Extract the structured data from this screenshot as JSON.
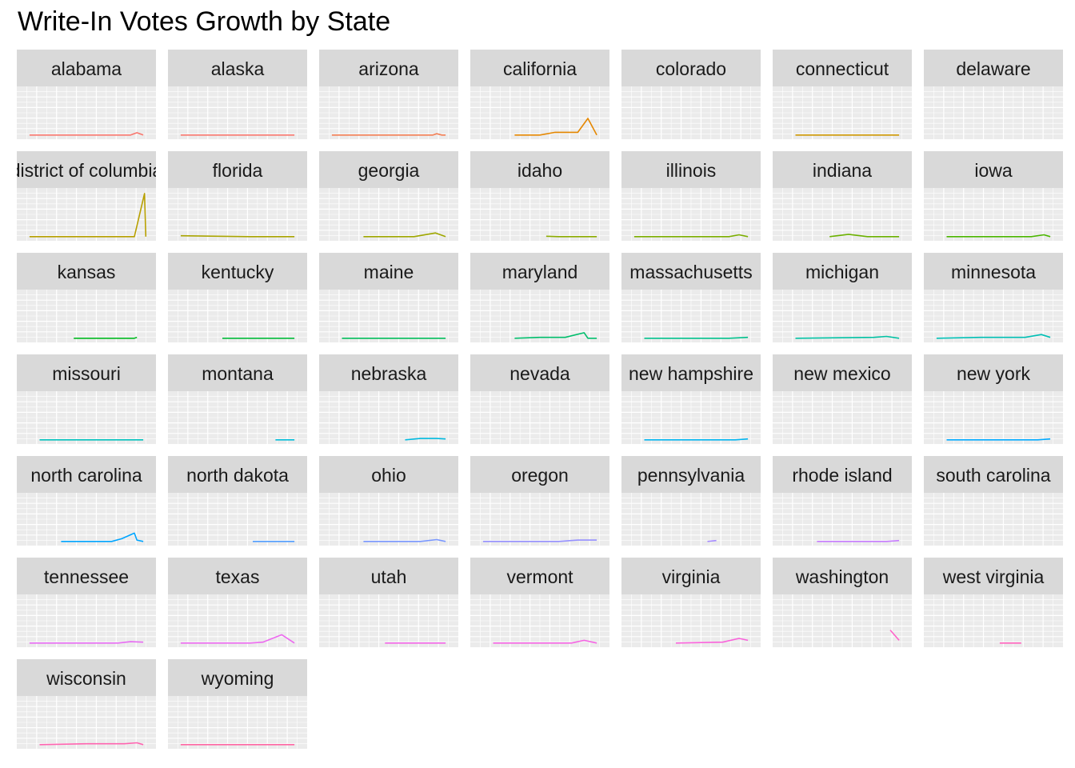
{
  "title": "Write-In Votes Growth by State",
  "colors": {
    "panel_bg": "#ebebeb",
    "strip_bg": "#d9d9d9",
    "grid": "#ffffff"
  },
  "chart_data": {
    "type": "line",
    "title": "Write-In Votes Growth by State",
    "xlabel": "",
    "ylabel": "",
    "axes_shown": false,
    "grid": true,
    "x_range": [
      0,
      1
    ],
    "y_range": [
      0,
      1
    ],
    "facets": [
      {
        "name": "alabama",
        "color": "#f8766d",
        "points": [
          [
            0.05,
            0.02
          ],
          [
            0.85,
            0.02
          ],
          [
            0.9,
            0.07
          ],
          [
            0.95,
            0.02
          ]
        ]
      },
      {
        "name": "alaska",
        "color": "#f8766d",
        "points": [
          [
            0.05,
            0.02
          ],
          [
            0.95,
            0.02
          ]
        ]
      },
      {
        "name": "arizona",
        "color": "#f27d52",
        "points": [
          [
            0.05,
            0.02
          ],
          [
            0.85,
            0.02
          ],
          [
            0.88,
            0.05
          ],
          [
            0.92,
            0.02
          ],
          [
            0.95,
            0.02
          ]
        ]
      },
      {
        "name": "california",
        "color": "#e58700",
        "points": [
          [
            0.3,
            0.02
          ],
          [
            0.5,
            0.02
          ],
          [
            0.62,
            0.08
          ],
          [
            0.8,
            0.08
          ],
          [
            0.88,
            0.38
          ],
          [
            0.95,
            0.02
          ]
        ]
      },
      {
        "name": "colorado",
        "color": "#d89000",
        "points": []
      },
      {
        "name": "connecticut",
        "color": "#cd9600",
        "points": [
          [
            0.13,
            0.02
          ],
          [
            0.95,
            0.02
          ]
        ]
      },
      {
        "name": "delaware",
        "color": "#c49a00",
        "points": []
      },
      {
        "name": "district of columbia",
        "color": "#b79f00",
        "points": [
          [
            0.05,
            0.02
          ],
          [
            0.88,
            0.02
          ],
          [
            0.96,
            0.95
          ],
          [
            0.97,
            0.02
          ]
        ]
      },
      {
        "name": "florida",
        "color": "#a9a400",
        "points": [
          [
            0.05,
            0.04
          ],
          [
            0.6,
            0.02
          ],
          [
            0.95,
            0.02
          ]
        ]
      },
      {
        "name": "georgia",
        "color": "#9fa700",
        "points": [
          [
            0.3,
            0.02
          ],
          [
            0.7,
            0.02
          ],
          [
            0.87,
            0.1
          ],
          [
            0.95,
            0.02
          ]
        ]
      },
      {
        "name": "idaho",
        "color": "#8cab00",
        "points": [
          [
            0.55,
            0.03
          ],
          [
            0.65,
            0.02
          ],
          [
            0.95,
            0.02
          ]
        ]
      },
      {
        "name": "illinois",
        "color": "#7cae00",
        "points": [
          [
            0.05,
            0.02
          ],
          [
            0.8,
            0.02
          ],
          [
            0.88,
            0.06
          ],
          [
            0.95,
            0.02
          ]
        ]
      },
      {
        "name": "indiana",
        "color": "#6bb100",
        "points": [
          [
            0.4,
            0.02
          ],
          [
            0.55,
            0.07
          ],
          [
            0.7,
            0.02
          ],
          [
            0.95,
            0.02
          ]
        ]
      },
      {
        "name": "iowa",
        "color": "#4bb600",
        "points": [
          [
            0.13,
            0.02
          ],
          [
            0.8,
            0.02
          ],
          [
            0.9,
            0.06
          ],
          [
            0.95,
            0.02
          ]
        ]
      },
      {
        "name": "kansas",
        "color": "#00b81f",
        "points": [
          [
            0.4,
            0.02
          ],
          [
            0.88,
            0.02
          ],
          [
            0.9,
            0.04
          ]
        ]
      },
      {
        "name": "kentucky",
        "color": "#00ba38",
        "points": [
          [
            0.38,
            0.02
          ],
          [
            0.95,
            0.02
          ]
        ]
      },
      {
        "name": "maine",
        "color": "#00bc59",
        "points": [
          [
            0.13,
            0.02
          ],
          [
            0.95,
            0.02
          ]
        ]
      },
      {
        "name": "maryland",
        "color": "#00be6c",
        "points": [
          [
            0.3,
            0.02
          ],
          [
            0.5,
            0.04
          ],
          [
            0.7,
            0.04
          ],
          [
            0.85,
            0.14
          ],
          [
            0.88,
            0.02
          ],
          [
            0.95,
            0.02
          ]
        ]
      },
      {
        "name": "massachusetts",
        "color": "#00c08b",
        "points": [
          [
            0.13,
            0.02
          ],
          [
            0.8,
            0.02
          ],
          [
            0.95,
            0.04
          ]
        ]
      },
      {
        "name": "michigan",
        "color": "#00c1a3",
        "points": [
          [
            0.13,
            0.02
          ],
          [
            0.75,
            0.04
          ],
          [
            0.85,
            0.06
          ],
          [
            0.95,
            0.02
          ]
        ]
      },
      {
        "name": "minnesota",
        "color": "#00bfb5",
        "points": [
          [
            0.05,
            0.02
          ],
          [
            0.4,
            0.04
          ],
          [
            0.75,
            0.04
          ],
          [
            0.88,
            0.1
          ],
          [
            0.95,
            0.04
          ]
        ]
      },
      {
        "name": "missouri",
        "color": "#00c0bb",
        "points": [
          [
            0.13,
            0.02
          ],
          [
            0.95,
            0.02
          ]
        ]
      },
      {
        "name": "montana",
        "color": "#00bcd8",
        "points": [
          [
            0.8,
            0.02
          ],
          [
            0.95,
            0.02
          ]
        ]
      },
      {
        "name": "nebraska",
        "color": "#00bae0",
        "points": [
          [
            0.63,
            0.02
          ],
          [
            0.75,
            0.05
          ],
          [
            0.88,
            0.05
          ],
          [
            0.95,
            0.04
          ]
        ]
      },
      {
        "name": "nevada",
        "color": "#00b7e9",
        "points": []
      },
      {
        "name": "new hampshire",
        "color": "#00b4ef",
        "points": [
          [
            0.13,
            0.02
          ],
          [
            0.85,
            0.02
          ],
          [
            0.95,
            0.04
          ]
        ]
      },
      {
        "name": "new mexico",
        "color": "#00aef8",
        "points": []
      },
      {
        "name": "new york",
        "color": "#00a9ff",
        "points": [
          [
            0.13,
            0.02
          ],
          [
            0.85,
            0.02
          ],
          [
            0.95,
            0.04
          ]
        ]
      },
      {
        "name": "north carolina",
        "color": "#00a5ff",
        "points": [
          [
            0.3,
            0.02
          ],
          [
            0.7,
            0.02
          ],
          [
            0.78,
            0.08
          ],
          [
            0.88,
            0.2
          ],
          [
            0.9,
            0.05
          ],
          [
            0.95,
            0.02
          ]
        ]
      },
      {
        "name": "north dakota",
        "color": "#529eff",
        "points": [
          [
            0.62,
            0.02
          ],
          [
            0.95,
            0.02
          ]
        ]
      },
      {
        "name": "ohio",
        "color": "#7997ff",
        "points": [
          [
            0.3,
            0.02
          ],
          [
            0.75,
            0.02
          ],
          [
            0.88,
            0.06
          ],
          [
            0.95,
            0.02
          ]
        ]
      },
      {
        "name": "oregon",
        "color": "#9590ff",
        "points": [
          [
            0.05,
            0.02
          ],
          [
            0.65,
            0.02
          ],
          [
            0.8,
            0.05
          ],
          [
            0.95,
            0.05
          ]
        ]
      },
      {
        "name": "pennsylvania",
        "color": "#a58aff",
        "points": [
          [
            0.63,
            0.02
          ],
          [
            0.7,
            0.04
          ]
        ]
      },
      {
        "name": "rhode island",
        "color": "#c77cff",
        "points": [
          [
            0.3,
            0.02
          ],
          [
            0.85,
            0.02
          ],
          [
            0.95,
            0.04
          ]
        ]
      },
      {
        "name": "south carolina",
        "color": "#d774fd",
        "points": []
      },
      {
        "name": "tennessee",
        "color": "#e76bf3",
        "points": [
          [
            0.05,
            0.02
          ],
          [
            0.75,
            0.02
          ],
          [
            0.85,
            0.05
          ],
          [
            0.95,
            0.04
          ]
        ]
      },
      {
        "name": "texas",
        "color": "#ec69ef",
        "points": [
          [
            0.05,
            0.02
          ],
          [
            0.6,
            0.02
          ],
          [
            0.7,
            0.04
          ],
          [
            0.85,
            0.2
          ],
          [
            0.95,
            0.02
          ]
        ]
      },
      {
        "name": "utah",
        "color": "#f265e7",
        "points": [
          [
            0.47,
            0.02
          ],
          [
            0.95,
            0.02
          ]
        ]
      },
      {
        "name": "vermont",
        "color": "#f564e3",
        "points": [
          [
            0.13,
            0.02
          ],
          [
            0.75,
            0.02
          ],
          [
            0.85,
            0.08
          ],
          [
            0.95,
            0.02
          ]
        ]
      },
      {
        "name": "virginia",
        "color": "#fa62db",
        "points": [
          [
            0.38,
            0.02
          ],
          [
            0.75,
            0.04
          ],
          [
            0.88,
            0.12
          ],
          [
            0.95,
            0.08
          ]
        ]
      },
      {
        "name": "washington",
        "color": "#ff61c9",
        "points": [
          [
            0.88,
            0.3
          ],
          [
            0.95,
            0.08
          ]
        ]
      },
      {
        "name": "west virginia",
        "color": "#ff62bc",
        "points": [
          [
            0.55,
            0.02
          ],
          [
            0.72,
            0.02
          ]
        ]
      },
      {
        "name": "wisconsin",
        "color": "#ff64b0",
        "points": [
          [
            0.13,
            0.02
          ],
          [
            0.5,
            0.04
          ],
          [
            0.8,
            0.04
          ],
          [
            0.9,
            0.06
          ],
          [
            0.95,
            0.02
          ]
        ]
      },
      {
        "name": "wyoming",
        "color": "#ff67a4",
        "points": [
          [
            0.05,
            0.02
          ],
          [
            0.95,
            0.02
          ]
        ]
      }
    ]
  }
}
